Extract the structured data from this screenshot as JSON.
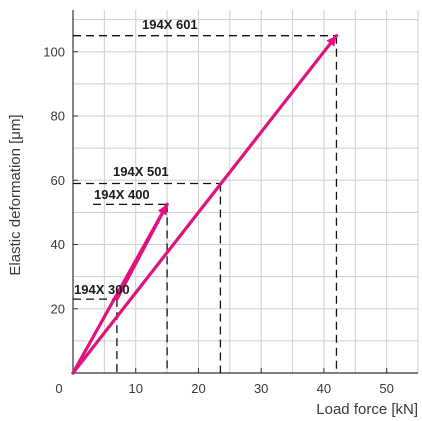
{
  "chart_data": {
    "type": "line",
    "xlabel": "Load force [kN]",
    "ylabel": "Elastic deformation [μm]",
    "xlim": [
      0,
      55
    ],
    "ylim": [
      0,
      113
    ],
    "x_ticks": [
      0,
      10,
      20,
      30,
      40,
      50
    ],
    "y_ticks": [
      20,
      40,
      60,
      80,
      100
    ],
    "grid": true,
    "line_color": "#E0137E",
    "series": [
      {
        "name": "194X 601",
        "x": [
          0,
          42
        ],
        "y": [
          0,
          105
        ]
      },
      {
        "name": "194X 501",
        "x": [
          0,
          23.5
        ],
        "y": [
          0,
          59
        ]
      },
      {
        "name": "194X 400",
        "x": [
          0,
          15
        ],
        "y": [
          0,
          52.5
        ]
      },
      {
        "name": "194X 300",
        "x": [
          0,
          7
        ],
        "y": [
          0,
          23
        ]
      }
    ],
    "drawn_lines": [
      {
        "x": [
          0,
          42
        ],
        "y": [
          0,
          105
        ]
      },
      {
        "x": [
          0,
          15
        ],
        "y": [
          0,
          52.5
        ]
      },
      {
        "x": [
          7,
          15
        ],
        "y": [
          23,
          52.5
        ]
      }
    ]
  }
}
